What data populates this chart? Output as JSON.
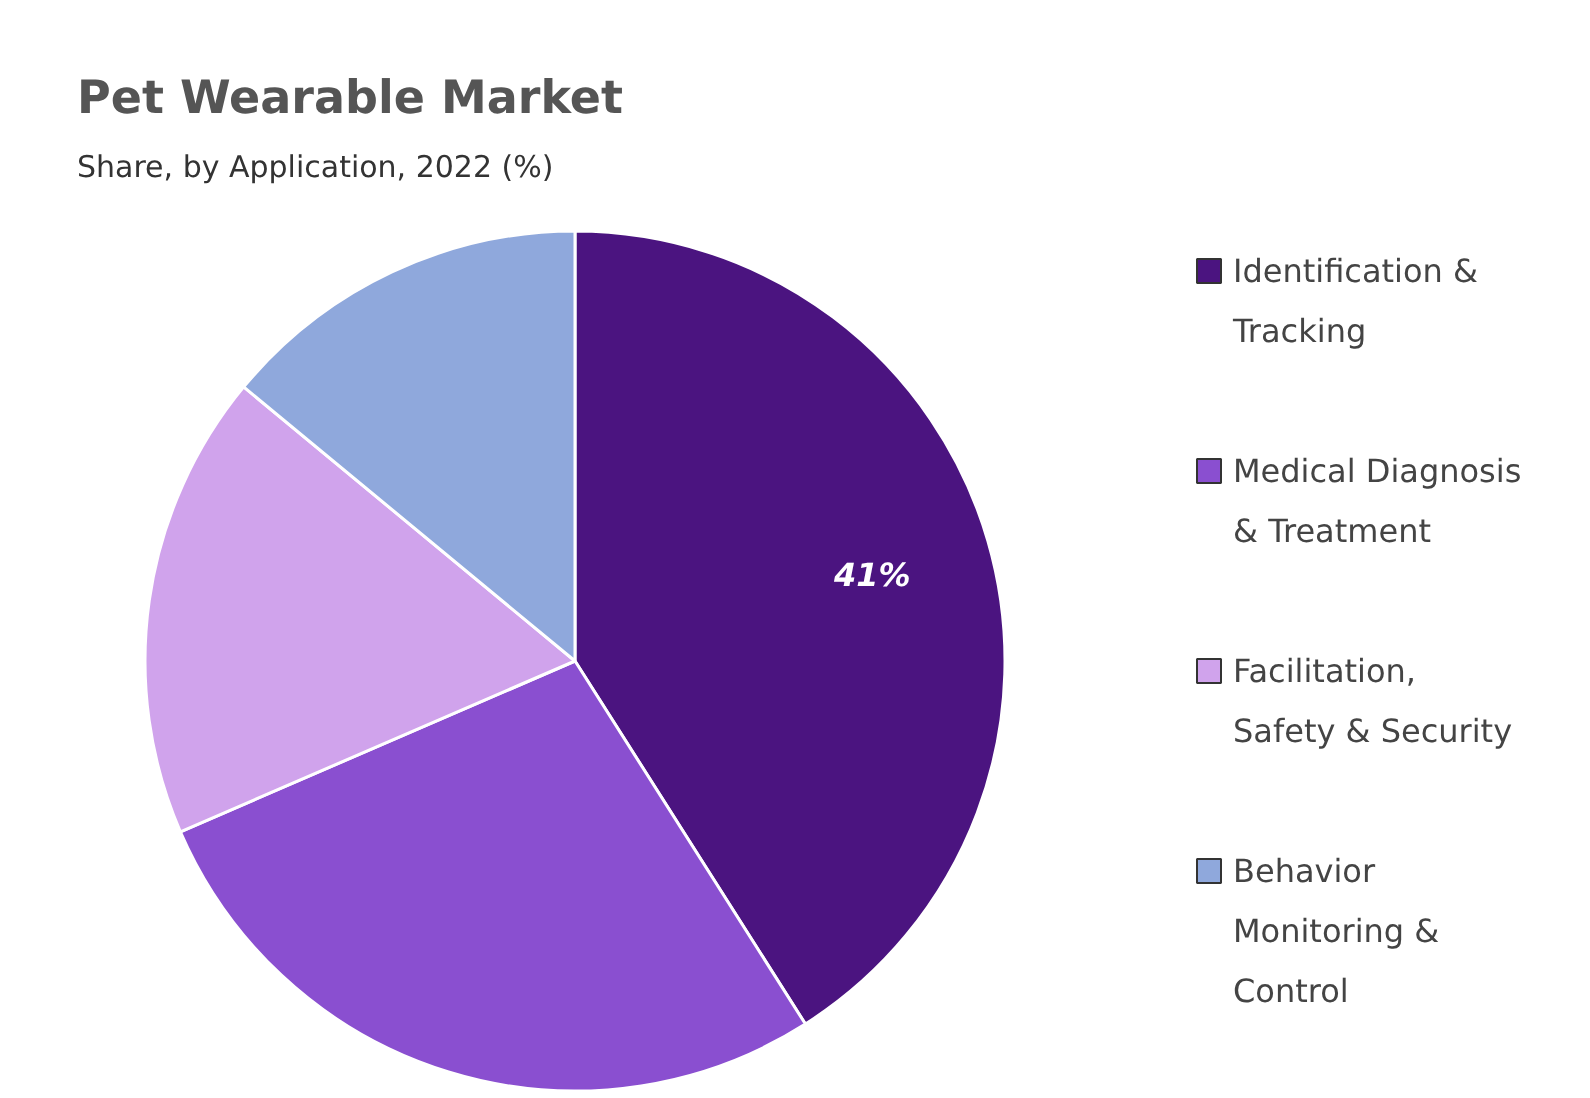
{
  "chart_data": {
    "type": "pie",
    "title": "Pet Wearable Market",
    "subtitle": "Share, by Application, 2022 (%)",
    "categories": [
      "Identification & Tracking",
      "Medical Diagnosis & Treatment",
      "Facilitation, Safety & Security",
      "Behavior Monitoring & Control"
    ],
    "values": [
      41,
      27.5,
      17.5,
      14
    ],
    "colors": [
      "#4b1480",
      "#8a4fd0",
      "#d0a3ec",
      "#8fa8dc"
    ],
    "value_labels": [
      "41%",
      null,
      null,
      null
    ],
    "legend": "right"
  }
}
